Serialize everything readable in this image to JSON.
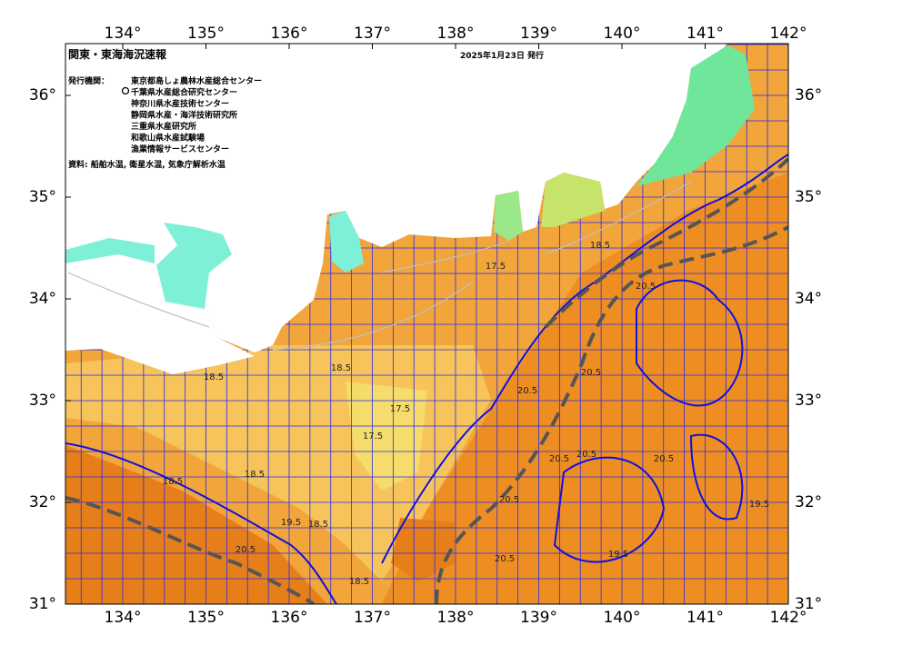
{
  "title": "関東・東海海況速報",
  "date": "2025年1月23日 発行",
  "issuer_heading": "発行機関：",
  "issuers": [
    "東京都島しょ農林水産総合センター",
    "千葉県水産総合研究センター",
    "神奈川県水産技術センター",
    "静岡県水産・海洋技術研究所",
    "三重県水産研究所",
    "和歌山県水産試験場",
    "漁業情報サービスセンター"
  ],
  "source": "資料: 船舶水温, 衛星水温, 気象庁解析水温",
  "lon_ticks": [
    {
      "value": 134,
      "label": "134°"
    },
    {
      "value": 135,
      "label": "135°"
    },
    {
      "value": 136,
      "label": "136°"
    },
    {
      "value": 137,
      "label": "137°"
    },
    {
      "value": 138,
      "label": "138°"
    },
    {
      "value": 139,
      "label": "139°"
    },
    {
      "value": 140,
      "label": "140°"
    },
    {
      "value": 141,
      "label": "141°"
    },
    {
      "value": 142,
      "label": "142°"
    }
  ],
  "lat_ticks": [
    {
      "value": 36,
      "label": "36°"
    },
    {
      "value": 35,
      "label": "35°"
    },
    {
      "value": 34,
      "label": "34°"
    },
    {
      "value": 33,
      "label": "33°"
    },
    {
      "value": 32,
      "label": "32°"
    },
    {
      "value": 31,
      "label": "31°"
    }
  ],
  "contour_labels": [
    "17.5",
    "18.5",
    "20.5",
    "20.5",
    "20.5",
    "20.5",
    "20.5",
    "20.5",
    "20.5",
    "20.5",
    "19.5",
    "19.5",
    "18.5",
    "18.5",
    "18.5",
    "18.5",
    "17.5",
    "17.5",
    "18.5",
    "20.5",
    "19.5",
    "18.5"
  ]
}
